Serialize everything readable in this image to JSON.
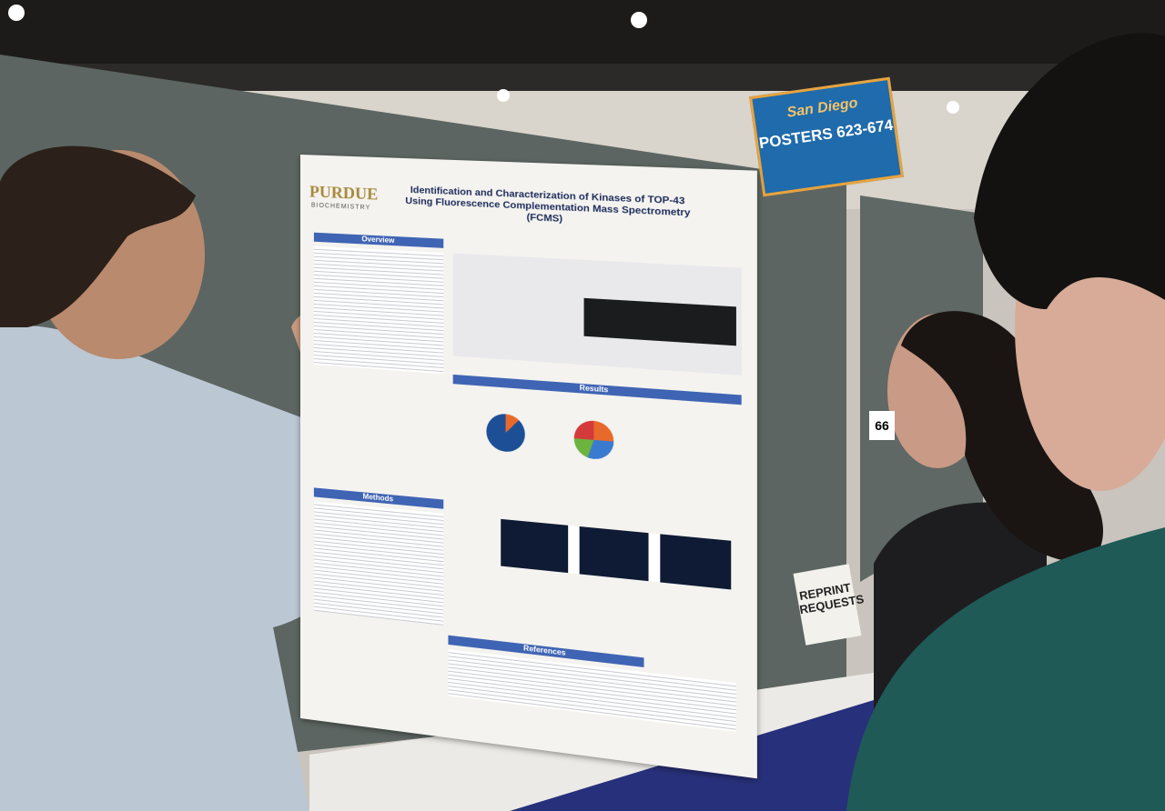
{
  "sign": {
    "city": "San Diego",
    "label": "POSTERS 623-674"
  },
  "poster": {
    "logo": "PURDUE",
    "department": "BIOCHEMISTRY",
    "title": "Identification and Characterization of Kinases of TOP-43 Using Fluorescence Complementation Mass Spectrometry (FCMS)",
    "sections": [
      "Overview",
      "Results",
      "Methods",
      "References"
    ]
  },
  "board_number": "66",
  "reprint": "REPRINT REQUESTS"
}
